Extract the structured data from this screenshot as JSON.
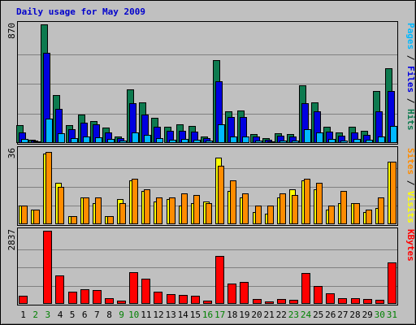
{
  "chart_data": {
    "type": "bar",
    "title": "Daily usage for May 2009",
    "categories": [
      "1",
      "2",
      "3",
      "4",
      "5",
      "6",
      "7",
      "8",
      "9",
      "10",
      "11",
      "12",
      "13",
      "14",
      "15",
      "16",
      "17",
      "18",
      "19",
      "20",
      "21",
      "22",
      "23",
      "24",
      "25",
      "26",
      "27",
      "28",
      "29",
      "30",
      "31"
    ],
    "weekend_days": [
      "2",
      "3",
      "9",
      "10",
      "16",
      "17",
      "23",
      "24",
      "30",
      "31"
    ],
    "colors": {
      "background": "#c0c0c0",
      "title": "#0000cc",
      "hits": "#0d7a4f",
      "files": "#0000e0",
      "pages": "#00b8ff",
      "visits": "#ffff00",
      "sites": "#ff8c00",
      "kbytes": "#ff0000",
      "weekday_label": "#000000",
      "weekend_label": "#008000"
    },
    "panels": [
      {
        "id": "hits",
        "scale_max_label": "870",
        "ymax": 870,
        "legend": [
          {
            "label": "Pages",
            "color": "#00b8ff"
          },
          {
            "label": " / ",
            "color": "#000000"
          },
          {
            "label": "Files",
            "color": "#0000e0"
          },
          {
            "label": " / ",
            "color": "#000000"
          },
          {
            "label": "Hits",
            "color": "#0d7a4f"
          }
        ],
        "series": [
          {
            "name": "Hits",
            "color": "#0d7a4f",
            "values": [
              130,
              25,
              870,
              350,
              130,
              210,
              160,
              115,
              45,
              395,
              300,
              185,
              120,
              140,
              125,
              50,
              610,
              235,
              240,
              65,
              35,
              70,
              65,
              425,
              300,
              120,
              75,
              120,
              90,
              380,
              550
            ]
          },
          {
            "name": "Files",
            "color": "#0000e0",
            "values": [
              75,
              20,
              660,
              250,
              100,
              150,
              140,
              80,
              35,
              290,
              210,
              120,
              90,
              90,
              85,
              35,
              450,
              190,
              190,
              45,
              25,
              55,
              50,
              290,
              230,
              85,
              55,
              75,
              60,
              235,
              380
            ]
          },
          {
            "name": "Pages",
            "color": "#00b8ff",
            "values": [
              30,
              12,
              180,
              70,
              35,
              50,
              40,
              30,
              18,
              80,
              60,
              35,
              25,
              30,
              25,
              15,
              135,
              45,
              45,
              20,
              12,
              20,
              20,
              100,
              80,
              30,
              20,
              30,
              25,
              45,
              125
            ]
          }
        ]
      },
      {
        "id": "visits",
        "scale_max_label": "36",
        "ymax": 36,
        "legend": [
          {
            "label": "Sites",
            "color": "#ff8c00"
          },
          {
            "label": " / ",
            "color": "#000000"
          },
          {
            "label": "Visits",
            "color": "#ffff00"
          }
        ],
        "series": [
          {
            "name": "Visits",
            "color": "#ffff00",
            "values": [
              9,
              7,
              34,
              20,
              4,
              13,
              10,
              4,
              12,
              21,
              16,
              11,
              12,
              9,
              10,
              11,
              32,
              16,
              13,
              6,
              5,
              13,
              17,
              21,
              17,
              7,
              10,
              10,
              6,
              8,
              30
            ]
          },
          {
            "name": "Sites",
            "color": "#ff8c00",
            "values": [
              9,
              7,
              35,
              18,
              4,
              13,
              13,
              4,
              10,
              22,
              17,
              13,
              13,
              15,
              14,
              10,
              28,
              21,
              15,
              9,
              9,
              15,
              14,
              22,
              20,
              9,
              16,
              10,
              7,
              13,
              30
            ]
          }
        ]
      },
      {
        "id": "kbytes",
        "scale_max_label": "2837",
        "ymax": 2837,
        "legend": [
          {
            "label": "KBytes",
            "color": "#ff0000"
          }
        ],
        "series": [
          {
            "name": "KBytes",
            "color": "#ff0000",
            "values": [
              300,
              40,
              2837,
              1100,
              470,
              560,
              530,
              210,
              140,
              1220,
              970,
              480,
              370,
              340,
              300,
              120,
              1860,
              780,
              840,
              190,
              105,
              200,
              170,
              1200,
              680,
              410,
              220,
              210,
              180,
              160,
              1600
            ]
          }
        ]
      }
    ]
  }
}
